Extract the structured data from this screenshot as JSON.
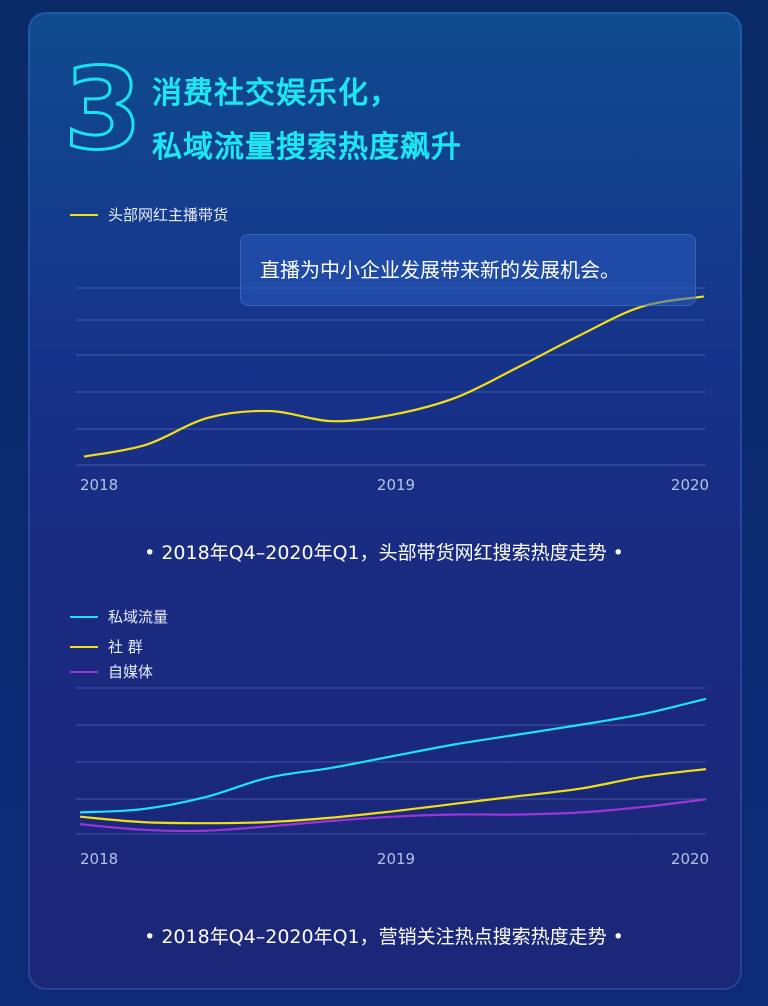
{
  "header": {
    "number": "3",
    "title_line1": "消费社交娱乐化，",
    "title_line2": "私域流量搜索热度飙升"
  },
  "chart1": {
    "legend": "头部网红主播带货",
    "tooltip": "直播为中小企业发展带来新的发展机会。",
    "caption": "•  2018年Q4–2020年Q1，头部带货网红搜索热度走势  •"
  },
  "chart2": {
    "legend": [
      "私域流量",
      "社 群",
      "自媒体"
    ],
    "caption": "•  2018年Q4–2020年Q1，营销关注热点搜索热度走势  •"
  },
  "colors": {
    "yellow": "#f2df16",
    "cyan": "#1fe3f5",
    "purple": "#9a35d6"
  },
  "chart_data": [
    {
      "type": "line",
      "title": "2018年Q4–2020年Q1，头部带货网红搜索热度走势",
      "x": [
        2018.0,
        2018.2,
        2018.4,
        2018.6,
        2018.8,
        2019.0,
        2019.2,
        2019.4,
        2019.6,
        2019.8,
        2020.0
      ],
      "tick_labels": [
        "2018",
        "2019",
        "2020"
      ],
      "series": [
        {
          "name": "头部网红主播带货",
          "color": "#f2df16",
          "values": [
            0.5,
            1.2,
            2.8,
            3.2,
            2.6,
            3.0,
            4.0,
            5.8,
            7.7,
            9.4,
            10.0
          ]
        }
      ],
      "ylim": [
        0,
        10.5
      ],
      "grid": true
    },
    {
      "type": "line",
      "title": "2018年Q4–2020年Q1，营销关注热点搜索热度走势",
      "x": [
        2018.0,
        2018.2,
        2018.4,
        2018.6,
        2018.8,
        2019.0,
        2019.2,
        2019.4,
        2019.6,
        2019.8,
        2020.0
      ],
      "tick_labels": [
        "2018",
        "2019",
        "2020"
      ],
      "series": [
        {
          "name": "私域流量",
          "color": "#1fe3f5",
          "values": [
            2.0,
            2.3,
            3.4,
            5.2,
            6.1,
            7.2,
            8.3,
            9.2,
            10.1,
            11.1,
            12.5
          ]
        },
        {
          "name": "社 群",
          "color": "#f2df16",
          "values": [
            1.6,
            1.1,
            1.0,
            1.1,
            1.5,
            2.1,
            2.8,
            3.5,
            4.2,
            5.3,
            6.0
          ]
        },
        {
          "name": "自媒体",
          "color": "#9a35d6",
          "values": [
            0.9,
            0.4,
            0.3,
            0.7,
            1.2,
            1.6,
            1.8,
            1.8,
            2.0,
            2.5,
            3.2
          ]
        }
      ],
      "ylim": [
        0,
        13.5
      ],
      "grid": true
    }
  ]
}
